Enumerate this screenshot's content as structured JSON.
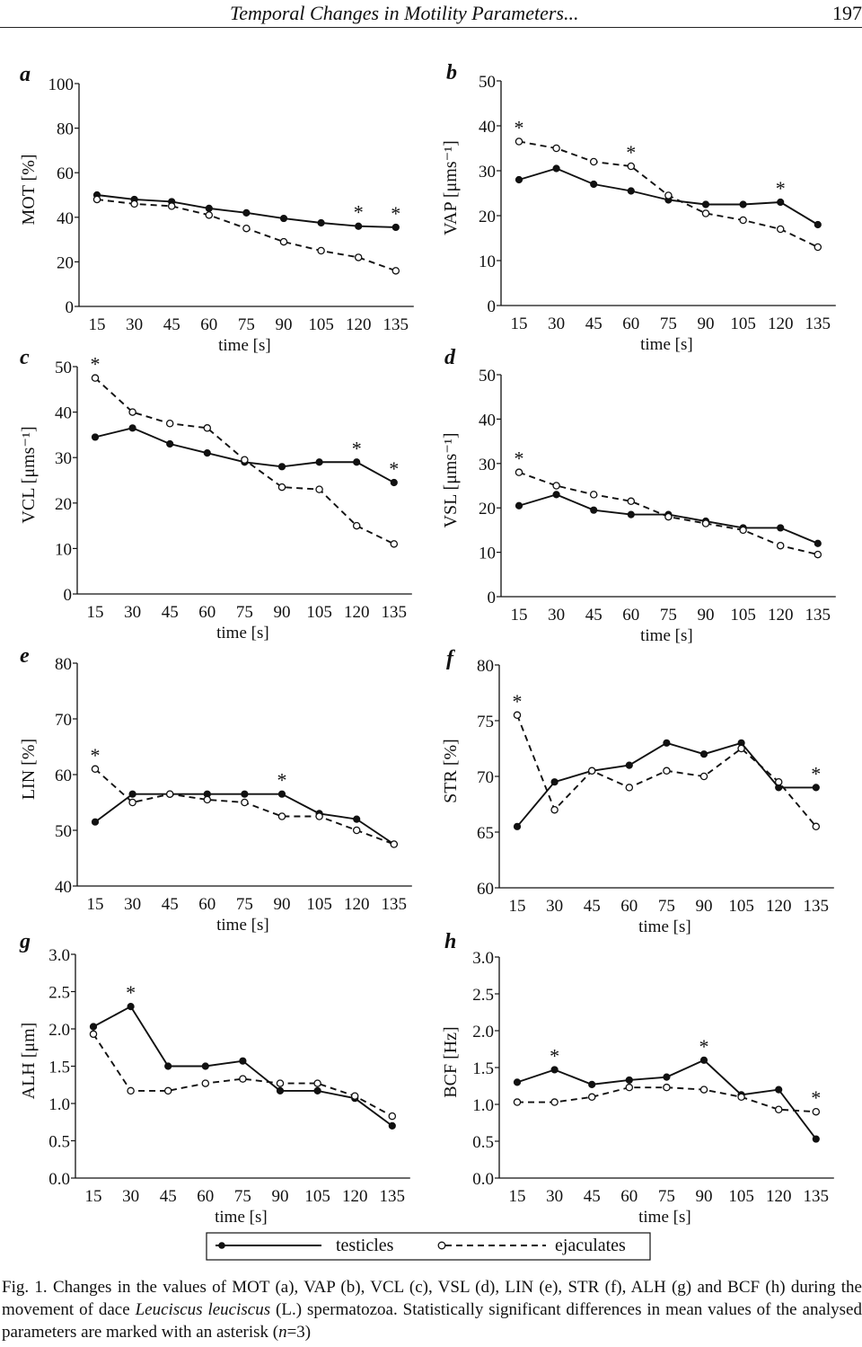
{
  "header": {
    "running_title": "Temporal Changes in Motility Parameters...",
    "page_number": "197"
  },
  "legend": {
    "testicles": "testicles",
    "ejaculates": "ejaculates"
  },
  "caption": {
    "fig": "Fig. 1.",
    "t1": " Changes in the values of MOT (a), VAP (b), VCL (c), VSL (d), LIN (e), STR (f), ALH (g) and BCF (h) during the movement of dace ",
    "species": "Leuciscus leuciscus",
    "t2": " (L.) spermatozoa. Statistically significant differences in mean values of the analysed parameters are marked with an asterisk (",
    "n": "n",
    "t3": "=3)"
  },
  "chart_data": [
    {
      "panel": "a",
      "type": "line",
      "xlabel": "time [s]",
      "ylabel": "MOT [%]",
      "ylim": [
        0,
        100
      ],
      "yticks": [
        "0",
        "20",
        "40",
        "60",
        "80",
        "100"
      ],
      "ytick_values": [
        0,
        20,
        40,
        60,
        80,
        100
      ],
      "categories": [
        "15",
        "30",
        "45",
        "60",
        "75",
        "90",
        "105",
        "120",
        "135"
      ],
      "series": [
        {
          "name": "testicles",
          "values": [
            50,
            48,
            47,
            44,
            42,
            39.5,
            37.5,
            36,
            35.5
          ]
        },
        {
          "name": "ejaculates",
          "values": [
            48,
            46,
            45,
            41,
            35,
            29,
            25,
            22,
            16
          ]
        }
      ],
      "asterisks": [
        7,
        8
      ]
    },
    {
      "panel": "b",
      "type": "line",
      "xlabel": "time [s]",
      "ylabel": "VAP [μms⁻¹]",
      "ylim": [
        0,
        50
      ],
      "yticks": [
        "0",
        "10",
        "20",
        "30",
        "40",
        "50"
      ],
      "ytick_values": [
        0,
        10,
        20,
        30,
        40,
        50
      ],
      "categories": [
        "15",
        "30",
        "45",
        "60",
        "75",
        "90",
        "105",
        "120",
        "135"
      ],
      "series": [
        {
          "name": "testicles",
          "values": [
            28,
            30.5,
            27,
            25.5,
            23.5,
            22.5,
            22.5,
            23,
            18
          ]
        },
        {
          "name": "ejaculates",
          "values": [
            36.5,
            35,
            32,
            31,
            24.5,
            20.5,
            19,
            17,
            13
          ]
        }
      ],
      "asterisks": [
        0,
        3,
        7
      ]
    },
    {
      "panel": "c",
      "type": "line",
      "xlabel": "time [s]",
      "ylabel": "VCL [μms⁻¹]",
      "ylim": [
        0,
        50
      ],
      "yticks": [
        "0",
        "10",
        "20",
        "30",
        "40",
        "50"
      ],
      "ytick_values": [
        0,
        10,
        20,
        30,
        40,
        50
      ],
      "categories": [
        "15",
        "30",
        "45",
        "60",
        "75",
        "90",
        "105",
        "120",
        "135"
      ],
      "series": [
        {
          "name": "testicles",
          "values": [
            34.5,
            36.5,
            33,
            31,
            29,
            28,
            29,
            29,
            24.5
          ]
        },
        {
          "name": "ejaculates",
          "values": [
            47.5,
            40,
            37.5,
            36.5,
            29.5,
            23.5,
            23,
            15,
            11
          ]
        }
      ],
      "asterisks": [
        0,
        7,
        8
      ]
    },
    {
      "panel": "d",
      "type": "line",
      "xlabel": "time [s]",
      "ylabel": "VSL [μms⁻¹]",
      "ylim": [
        0,
        50
      ],
      "yticks": [
        "0",
        "10",
        "20",
        "30",
        "40",
        "50"
      ],
      "ytick_values": [
        0,
        10,
        20,
        30,
        40,
        50
      ],
      "categories": [
        "15",
        "30",
        "45",
        "60",
        "75",
        "90",
        "105",
        "120",
        "135"
      ],
      "series": [
        {
          "name": "testicles",
          "values": [
            20.5,
            23,
            19.5,
            18.5,
            18.5,
            17,
            15.5,
            15.5,
            12
          ]
        },
        {
          "name": "ejaculates",
          "values": [
            28,
            25,
            23,
            21.5,
            18,
            16.5,
            15,
            11.5,
            9.5
          ]
        }
      ],
      "asterisks": [
        0
      ]
    },
    {
      "panel": "e",
      "type": "line",
      "xlabel": "time [s]",
      "ylabel": "LIN [%]",
      "ylim": [
        40,
        80
      ],
      "yticks": [
        "40",
        "50",
        "60",
        "70",
        "80"
      ],
      "ytick_values": [
        40,
        50,
        60,
        70,
        80
      ],
      "categories": [
        "15",
        "30",
        "45",
        "60",
        "75",
        "90",
        "105",
        "120",
        "135"
      ],
      "series": [
        {
          "name": "testicles",
          "values": [
            51.5,
            56.5,
            56.5,
            56.5,
            56.5,
            56.5,
            53,
            52,
            47.5
          ]
        },
        {
          "name": "ejaculates",
          "values": [
            61,
            55,
            56.5,
            55.5,
            55,
            52.5,
            52.5,
            50,
            47.5
          ]
        }
      ],
      "asterisks": [
        0,
        5
      ]
    },
    {
      "panel": "f",
      "type": "line",
      "xlabel": "time [s]",
      "ylabel": "STR [%]",
      "ylim": [
        60,
        80
      ],
      "yticks": [
        "60",
        "65",
        "70",
        "75",
        "80"
      ],
      "ytick_values": [
        60,
        65,
        70,
        75,
        80
      ],
      "categories": [
        "15",
        "30",
        "45",
        "60",
        "75",
        "90",
        "105",
        "120",
        "135"
      ],
      "series": [
        {
          "name": "testicles",
          "values": [
            65.5,
            69.5,
            70.5,
            71,
            73,
            72,
            73,
            69,
            69
          ]
        },
        {
          "name": "ejaculates",
          "values": [
            75.5,
            67,
            70.5,
            69,
            70.5,
            70,
            72.5,
            69.5,
            65.5
          ]
        }
      ],
      "asterisks": [
        0,
        8
      ]
    },
    {
      "panel": "g",
      "type": "line",
      "xlabel": "time [s]",
      "ylabel": "ALH [μm]",
      "ylim": [
        0,
        3
      ],
      "yticks": [
        "0.0",
        "0.5",
        "1.0",
        "1.5",
        "2.0",
        "2.5",
        "3.0"
      ],
      "ytick_values": [
        0,
        0.5,
        1,
        1.5,
        2,
        2.5,
        3
      ],
      "categories": [
        "15",
        "30",
        "45",
        "60",
        "75",
        "90",
        "105",
        "120",
        "135"
      ],
      "series": [
        {
          "name": "testicles",
          "values": [
            2.03,
            2.3,
            1.5,
            1.5,
            1.57,
            1.17,
            1.17,
            1.07,
            0.7
          ]
        },
        {
          "name": "ejaculates",
          "values": [
            1.93,
            1.17,
            1.17,
            1.27,
            1.33,
            1.27,
            1.27,
            1.1,
            0.83
          ]
        }
      ],
      "asterisks": [
        1
      ]
    },
    {
      "panel": "h",
      "type": "line",
      "xlabel": "time [s]",
      "ylabel": "BCF [Hz]",
      "ylim": [
        0,
        3
      ],
      "yticks": [
        "0.0",
        "0.5",
        "1.0",
        "1.5",
        "2.0",
        "2.5",
        "3.0"
      ],
      "ytick_values": [
        0,
        0.5,
        1,
        1.5,
        2,
        2.5,
        3
      ],
      "categories": [
        "15",
        "30",
        "45",
        "60",
        "75",
        "90",
        "105",
        "120",
        "135"
      ],
      "series": [
        {
          "name": "testicles",
          "values": [
            1.3,
            1.47,
            1.27,
            1.33,
            1.37,
            1.6,
            1.13,
            1.2,
            0.53
          ]
        },
        {
          "name": "ejaculates",
          "values": [
            1.03,
            1.03,
            1.1,
            1.23,
            1.23,
            1.2,
            1.1,
            0.93,
            0.9
          ]
        }
      ],
      "asterisks": [
        1,
        5,
        8
      ]
    }
  ]
}
